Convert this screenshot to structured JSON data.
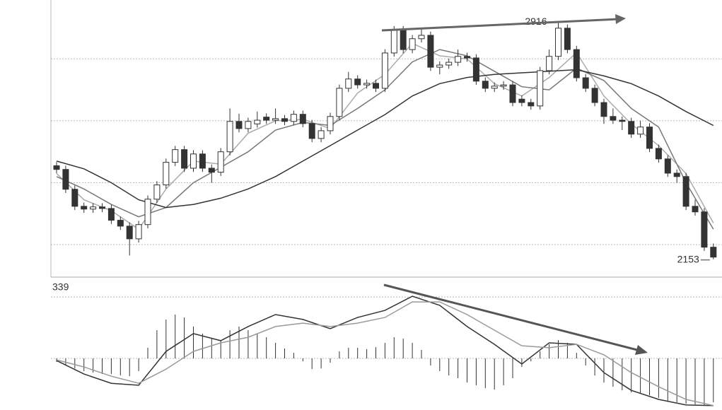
{
  "chart_data": [
    {
      "type": "candlestick",
      "ylim": [
        2100,
        2990
      ],
      "grid_values": [
        2800,
        2600,
        2400,
        2200
      ],
      "up_color": "#ffffff",
      "down_color": "#333333",
      "edge_color": "#333333",
      "open": [
        2455,
        2443,
        2379,
        2324,
        2315,
        2322,
        2317,
        2279,
        2260,
        2219,
        2265,
        2347,
        2393,
        2466,
        2507,
        2447,
        2493,
        2447,
        2434,
        2500,
        2598,
        2575,
        2590,
        2612,
        2602,
        2607,
        2598,
        2621,
        2591,
        2543,
        2568,
        2614,
        2705,
        2735,
        2716,
        2721,
        2705,
        2819,
        2894,
        2830,
        2865,
        2876,
        2773,
        2780,
        2789,
        2808,
        2803,
        2728,
        2705,
        2712,
        2716,
        2670,
        2659,
        2648,
        2762,
        2808,
        2899,
        2830,
        2739,
        2705,
        2659,
        2614,
        2602,
        2598,
        2557,
        2580,
        2511,
        2477,
        2431,
        2420,
        2324,
        2306,
        2192
      ],
      "high": [
        2467,
        2455,
        2391,
        2336,
        2334,
        2334,
        2329,
        2291,
        2272,
        2277,
        2359,
        2405,
        2478,
        2519,
        2519,
        2505,
        2505,
        2459,
        2512,
        2640,
        2623,
        2610,
        2630,
        2624,
        2640,
        2619,
        2633,
        2633,
        2603,
        2580,
        2626,
        2717,
        2758,
        2747,
        2733,
        2733,
        2831,
        2906,
        2906,
        2877,
        2900,
        2888,
        2792,
        2801,
        2830,
        2820,
        2815,
        2740,
        2724,
        2728,
        2728,
        2682,
        2671,
        2774,
        2830,
        2916,
        2911,
        2842,
        2751,
        2717,
        2671,
        2640,
        2614,
        2610,
        2600,
        2592,
        2523,
        2489,
        2443,
        2432,
        2345,
        2318,
        2204
      ],
      "low": [
        2431,
        2367,
        2312,
        2303,
        2303,
        2305,
        2267,
        2248,
        2165,
        2207,
        2253,
        2335,
        2381,
        2454,
        2435,
        2435,
        2435,
        2400,
        2422,
        2488,
        2563,
        2563,
        2578,
        2590,
        2590,
        2586,
        2586,
        2579,
        2531,
        2531,
        2556,
        2602,
        2693,
        2704,
        2704,
        2693,
        2693,
        2807,
        2818,
        2818,
        2853,
        2761,
        2750,
        2768,
        2777,
        2791,
        2716,
        2693,
        2693,
        2700,
        2647,
        2647,
        2636,
        2636,
        2750,
        2796,
        2818,
        2727,
        2693,
        2647,
        2590,
        2590,
        2570,
        2545,
        2545,
        2499,
        2465,
        2419,
        2400,
        2312,
        2294,
        2180,
        2153
      ],
      "close": [
        2443,
        2379,
        2324,
        2315,
        2322,
        2317,
        2279,
        2260,
        2219,
        2265,
        2347,
        2393,
        2466,
        2507,
        2447,
        2493,
        2447,
        2434,
        2500,
        2598,
        2575,
        2598,
        2602,
        2602,
        2607,
        2598,
        2621,
        2591,
        2543,
        2568,
        2614,
        2705,
        2735,
        2716,
        2721,
        2705,
        2819,
        2894,
        2830,
        2865,
        2876,
        2773,
        2780,
        2789,
        2808,
        2803,
        2728,
        2705,
        2712,
        2716,
        2659,
        2659,
        2648,
        2762,
        2808,
        2899,
        2830,
        2739,
        2705,
        2659,
        2614,
        2602,
        2598,
        2557,
        2580,
        2511,
        2477,
        2431,
        2420,
        2324,
        2306,
        2192,
        2160
      ],
      "ma_x": [
        0,
        3,
        6,
        9,
        12,
        15,
        18,
        21,
        24,
        27,
        30,
        33,
        36,
        39,
        42,
        45,
        48,
        51,
        54,
        57,
        60,
        63,
        66,
        69,
        72
      ],
      "series": [
        {
          "color": "#aaaaaa",
          "values": [
            2430,
            2345,
            2310,
            2250,
            2380,
            2470,
            2460,
            2560,
            2600,
            2605,
            2575,
            2690,
            2750,
            2850,
            2810,
            2800,
            2720,
            2680,
            2740,
            2820,
            2680,
            2590,
            2520,
            2430,
            2270
          ]
        },
        {
          "color": "#777777",
          "values": [
            2420,
            2380,
            2330,
            2290,
            2320,
            2400,
            2450,
            2500,
            2570,
            2595,
            2585,
            2640,
            2700,
            2790,
            2830,
            2810,
            2760,
            2710,
            2700,
            2770,
            2730,
            2640,
            2580,
            2400,
            2250
          ]
        },
        {
          "color": "#333333",
          "values": [
            2470,
            2445,
            2400,
            2345,
            2320,
            2330,
            2350,
            2380,
            2420,
            2470,
            2520,
            2570,
            2620,
            2680,
            2720,
            2740,
            2750,
            2755,
            2760,
            2765,
            2745,
            2720,
            2680,
            2630,
            2585
          ]
        }
      ],
      "max_label": 2916,
      "min_label": 2153
    },
    {
      "type": "macd",
      "ylim": [
        -265,
        437
      ],
      "label": 339,
      "bar_color": "#333333",
      "histogram": [
        -20,
        -39,
        -55,
        -70,
        -78,
        -86,
        -86,
        -94,
        -98,
        -70,
        59,
        156,
        215,
        242,
        226,
        176,
        137,
        109,
        98,
        156,
        176,
        156,
        137,
        117,
        86,
        55,
        31,
        -16,
        -59,
        -55,
        -23,
        39,
        59,
        59,
        51,
        62,
        86,
        117,
        109,
        86,
        47,
        -39,
        -70,
        -94,
        -109,
        -133,
        -148,
        -164,
        -172,
        -148,
        -109,
        -47,
        -16,
        39,
        78,
        101,
        86,
        31,
        -39,
        -94,
        -133,
        -156,
        -176,
        -187,
        -195,
        -203,
        -218,
        -234,
        -242,
        -250,
        -254,
        -257,
        -242
      ],
      "x": [
        0,
        3,
        6,
        9,
        12,
        15,
        18,
        21,
        24,
        27,
        30,
        33,
        36,
        39,
        42,
        45,
        48,
        51,
        54,
        57,
        60,
        63,
        66,
        69,
        72
      ],
      "series": [
        {
          "color": "#333333",
          "values": [
            -12,
            -86,
            -137,
            -148,
            39,
            137,
            98,
            176,
            242,
            215,
            164,
            226,
            265,
            343,
            293,
            176,
            78,
            -31,
            86,
            78,
            -78,
            -176,
            -226,
            -257,
            -260
          ]
        },
        {
          "color": "#999999",
          "values": [
            -8,
            -47,
            -98,
            -137,
            -59,
            39,
            86,
            117,
            176,
            195,
            176,
            195,
            226,
            312,
            312,
            242,
            156,
            70,
            59,
            78,
            20,
            -78,
            -156,
            -226,
            -260
          ]
        }
      ]
    }
  ]
}
